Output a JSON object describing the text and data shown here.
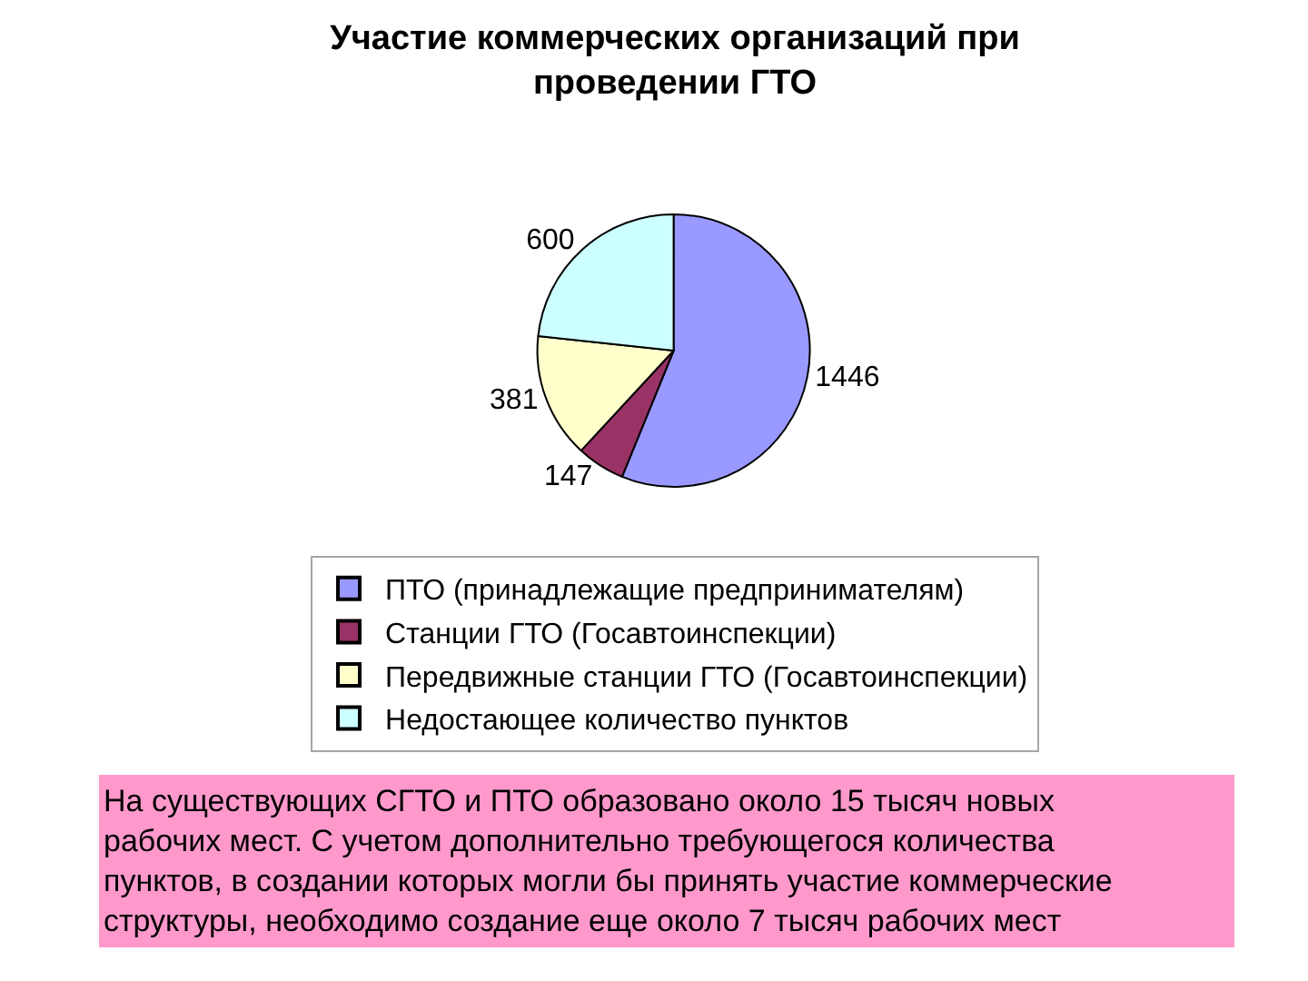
{
  "chart_data": {
    "type": "pie",
    "title": "Участие коммерческих организаций при\nпроведении ГТО",
    "categories": [
      "ПТО (принадлежащие предпринимателям)",
      "Станции ГТО (Госавтоинспекции)",
      "Передвижные станции ГТО (Госавтоинспекции)",
      "Недостающее количество пунктов"
    ],
    "values": [
      1446,
      147,
      381,
      600
    ],
    "colors": [
      "#9999ff",
      "#993366",
      "#ffffcc",
      "#ccffff"
    ],
    "data_labels": true,
    "legend": "bottom",
    "annotations": [
      "На существующих СГТО и ПТО образовано около 15 тысяч новых\nрабочих мест. С учетом дополнительно требующегося количества\nпунктов, в создании которых могли бы принять участие коммерческие\nструктуры, необходимо создание еще около 7 тысяч рабочих мест"
    ]
  }
}
